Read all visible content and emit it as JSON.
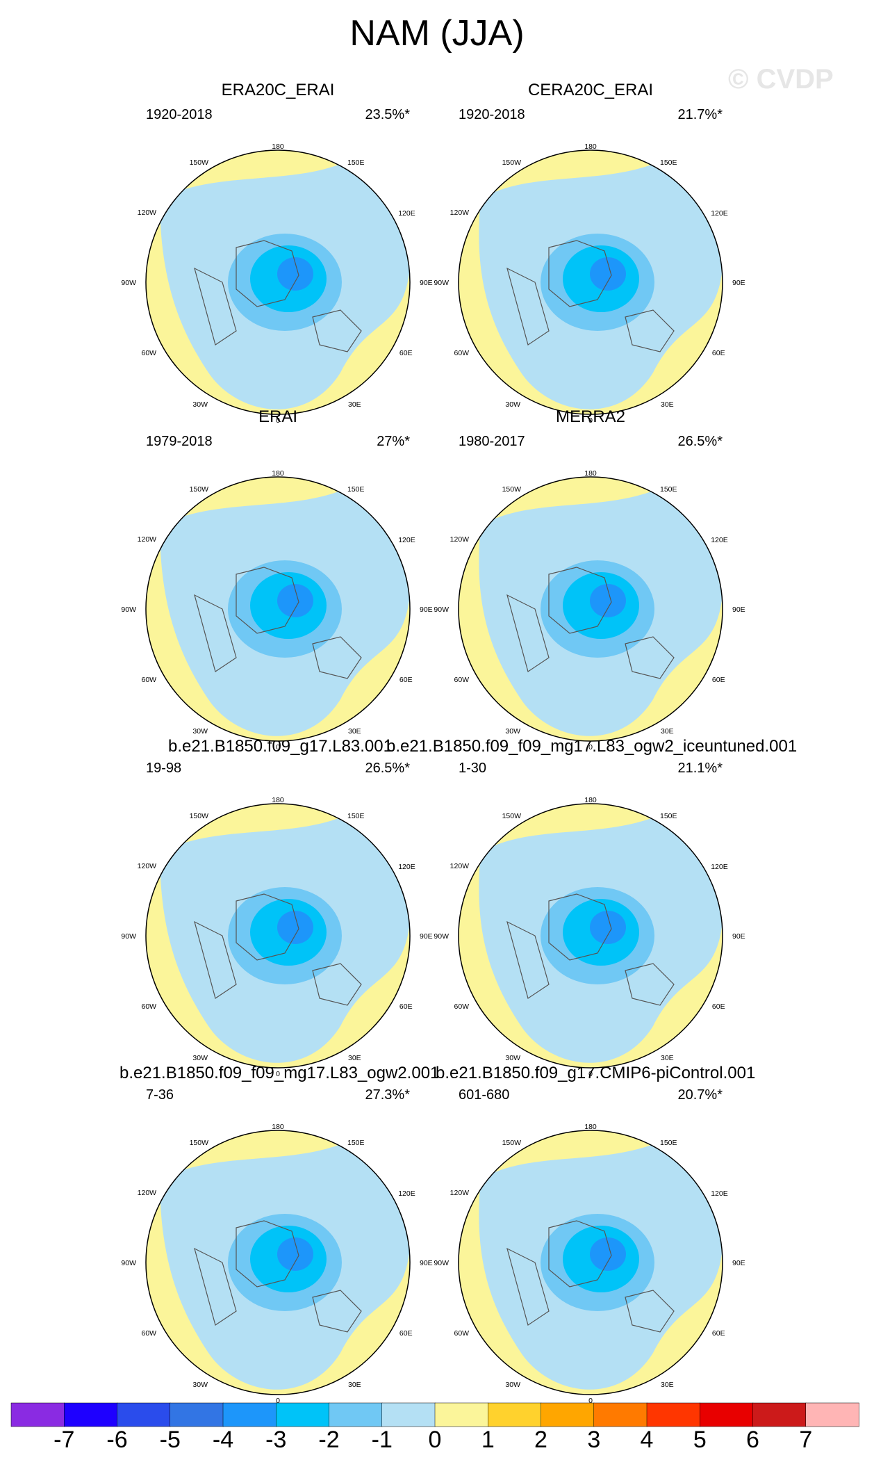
{
  "title": "NAM (JJA)",
  "watermark": "© CVDP",
  "panels": [
    {
      "title": "ERA20C_ERAI",
      "years": "1920-2018",
      "pct": "23.5%*"
    },
    {
      "title": "CERA20C_ERAI",
      "years": "1920-2018",
      "pct": "21.7%*"
    },
    {
      "title": "ERAI",
      "years": "1979-2018",
      "pct": "27%*"
    },
    {
      "title": "MERRA2",
      "years": "1980-2017",
      "pct": "26.5%*"
    },
    {
      "title": "",
      "years": "19-98",
      "pct": "26.5%*"
    },
    {
      "title": "",
      "years": "1-30",
      "pct": "21.1%*"
    },
    {
      "title": "",
      "years": "7-36",
      "pct": "27.3%*"
    },
    {
      "title": "",
      "years": "601-680",
      "pct": "20.7%*"
    }
  ],
  "run_titles": [
    "b.e21.B1850.f09_g17.L83.001",
    "b.e21.B1850.f09_f09_mg17.L83_ogw2_iceuntuned.001",
    "b.e21.B1850.f09_f09_mg17.L83_ogw2.001",
    "b.e21.B1850.f09_g17.CMIP6-piControl.001"
  ],
  "map_labels": {
    "lon180": "180",
    "lon150w": "150W",
    "lon150e": "150E",
    "lon120w": "120W",
    "lon120e": "120E",
    "lon90w": "90W",
    "lon90e": "90E",
    "lon60w": "60W",
    "lon60e": "60E",
    "lon30w": "30W",
    "lon30e": "30E",
    "lon0": "0"
  },
  "colorbar": {
    "labels": [
      "-7",
      "-6",
      "-5",
      "-4",
      "-3",
      "-2",
      "-1",
      "0",
      "1",
      "2",
      "3",
      "4",
      "5",
      "6",
      "7"
    ],
    "colors": [
      "#8a2be2",
      "#1e00ff",
      "#2a4cec",
      "#3275e4",
      "#1d96fa",
      "#00c3f8",
      "#70c8f4",
      "#b4e0f4",
      "#fbf59a",
      "#ffd22d",
      "#ffa600",
      "#ff7a00",
      "#ff3600",
      "#e80000",
      "#cc1a1a",
      "#ffb5b5"
    ]
  }
}
